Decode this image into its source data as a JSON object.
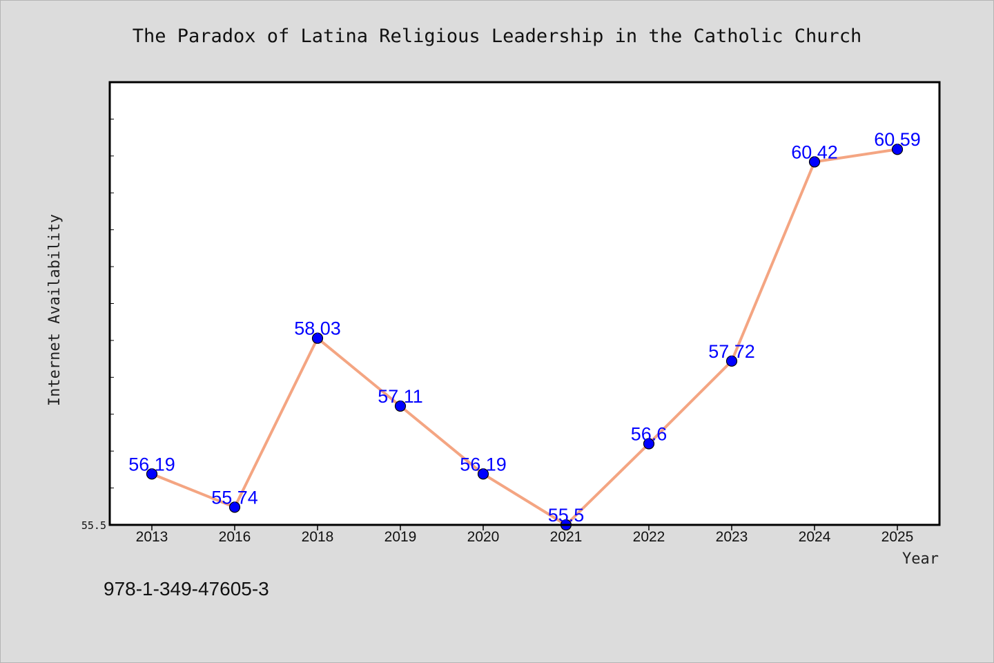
{
  "chart_data": {
    "type": "line",
    "title": "The Paradox of Latina Religious Leadership in the Catholic Church",
    "xlabel": "Year",
    "ylabel": "Internet Availability",
    "categories": [
      "2013",
      "2016",
      "2018",
      "2019",
      "2020",
      "2021",
      "2022",
      "2023",
      "2024",
      "2025"
    ],
    "series": [
      {
        "values": [
          56.19,
          55.74,
          58.03,
          57.11,
          56.19,
          55.5,
          56.6,
          57.72,
          60.42,
          60.59
        ],
        "labels": [
          "56.19",
          "55.74",
          "58.03",
          "57.11",
          "56.19",
          "55.5",
          "56.6",
          "57.72",
          "60.42",
          "60.59"
        ]
      }
    ],
    "ylim": [
      55.5,
      61.5
    ],
    "ytick_labels": [
      "55.5"
    ],
    "grid": false,
    "colors": {
      "line": "#f4a582",
      "marker": "#0000ff",
      "label": "#0000ff"
    }
  },
  "footer": {
    "isbn": "978-1-349-47605-3"
  }
}
